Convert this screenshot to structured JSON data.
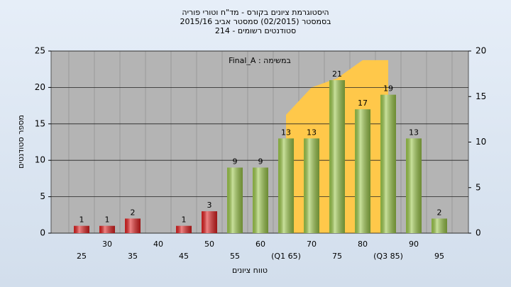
{
  "chart_data": {
    "type": "bar",
    "title": "היסטוגרמת ציונים בקורס - מד\"ח וטורי פוריה",
    "subtitle": "בסמסטר  (02/2015)  סמסטר אביב 2015/16",
    "subtitle2": "סטודנטים רשומים - 214",
    "annotation": "Final_A : במשימה",
    "y_label": "מספר סטודנטים",
    "x_label": "טווח ציונים",
    "categories": [
      "25",
      "30",
      "35",
      "40",
      "45",
      "50",
      "55",
      "60",
      "(Q1 65)",
      "70",
      "75",
      "80",
      "(Q3 85)",
      "90",
      "95"
    ],
    "values": [
      1,
      1,
      2,
      null,
      1,
      3,
      9,
      9,
      13,
      13,
      21,
      17,
      19,
      13,
      2
    ],
    "colors": [
      "#e02020",
      "#e02020",
      "#e02020",
      "#e02020",
      "#e02020",
      "#e02020",
      "#9cc84a",
      "#9cc84a",
      "#9cc84a",
      "#9cc84a",
      "#9cc84a",
      "#9cc84a",
      "#9cc84a",
      "#9cc84a",
      "#9cc84a"
    ],
    "area": {
      "color": "#ffc84a",
      "axis": "y2",
      "values": [
        null,
        null,
        null,
        null,
        null,
        null,
        null,
        null,
        13,
        16,
        17,
        19,
        19,
        null,
        null
      ]
    },
    "ylim": [
      0,
      25
    ],
    "yticks": [
      0,
      5,
      10,
      15,
      20,
      25
    ],
    "y2lim": [
      0,
      20
    ],
    "y2ticks": [
      0,
      5,
      10,
      15,
      20
    ],
    "grid": true
  }
}
